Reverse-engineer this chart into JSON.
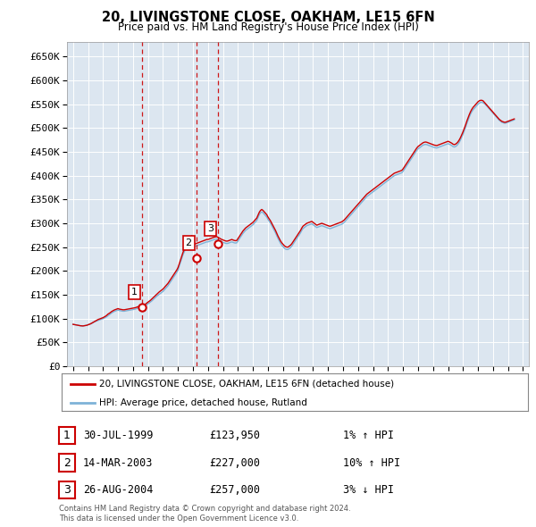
{
  "title": "20, LIVINGSTONE CLOSE, OAKHAM, LE15 6FN",
  "subtitle": "Price paid vs. HM Land Registry's House Price Index (HPI)",
  "ylabel_ticks": [
    "£0",
    "£50K",
    "£100K",
    "£150K",
    "£200K",
    "£250K",
    "£300K",
    "£350K",
    "£400K",
    "£450K",
    "£500K",
    "£550K",
    "£600K",
    "£650K"
  ],
  "ylim": [
    0,
    680000
  ],
  "xlim_start": 1994.6,
  "xlim_end": 2025.4,
  "background_color": "#ffffff",
  "plot_bg_color": "#dce6f0",
  "grid_color": "#ffffff",
  "transactions": [
    {
      "num": 1,
      "date": "30-JUL-1999",
      "price": 123950,
      "pct": "1%",
      "dir": "↑",
      "year": 1999.58
    },
    {
      "num": 2,
      "date": "14-MAR-2003",
      "price": 227000,
      "pct": "10%",
      "dir": "↑",
      "year": 2003.21
    },
    {
      "num": 3,
      "date": "26-AUG-2004",
      "price": 257000,
      "pct": "3%",
      "dir": "↓",
      "year": 2004.65
    }
  ],
  "red_line_color": "#cc0000",
  "blue_line_color": "#7eb3d8",
  "dashed_line_color": "#cc0000",
  "legend_label_red": "20, LIVINGSTONE CLOSE, OAKHAM, LE15 6FN (detached house)",
  "legend_label_blue": "HPI: Average price, detached house, Rutland",
  "footer1": "Contains HM Land Registry data © Crown copyright and database right 2024.",
  "footer2": "This data is licensed under the Open Government Licence v3.0.",
  "hpi_years": [
    1995.0,
    1995.083,
    1995.167,
    1995.25,
    1995.333,
    1995.417,
    1995.5,
    1995.583,
    1995.667,
    1995.75,
    1995.833,
    1995.917,
    1996.0,
    1996.083,
    1996.167,
    1996.25,
    1996.333,
    1996.417,
    1996.5,
    1996.583,
    1996.667,
    1996.75,
    1996.833,
    1996.917,
    1997.0,
    1997.083,
    1997.167,
    1997.25,
    1997.333,
    1997.417,
    1997.5,
    1997.583,
    1997.667,
    1997.75,
    1997.833,
    1997.917,
    1998.0,
    1998.083,
    1998.167,
    1998.25,
    1998.333,
    1998.417,
    1998.5,
    1998.583,
    1998.667,
    1998.75,
    1998.833,
    1998.917,
    1999.0,
    1999.083,
    1999.167,
    1999.25,
    1999.333,
    1999.417,
    1999.5,
    1999.583,
    1999.667,
    1999.75,
    1999.833,
    1999.917,
    2000.0,
    2000.083,
    2000.167,
    2000.25,
    2000.333,
    2000.417,
    2000.5,
    2000.583,
    2000.667,
    2000.75,
    2000.833,
    2000.917,
    2001.0,
    2001.083,
    2001.167,
    2001.25,
    2001.333,
    2001.417,
    2001.5,
    2001.583,
    2001.667,
    2001.75,
    2001.833,
    2001.917,
    2002.0,
    2002.083,
    2002.167,
    2002.25,
    2002.333,
    2002.417,
    2002.5,
    2002.583,
    2002.667,
    2002.75,
    2002.833,
    2002.917,
    2003.0,
    2003.083,
    2003.167,
    2003.25,
    2003.333,
    2003.417,
    2003.5,
    2003.583,
    2003.667,
    2003.75,
    2003.833,
    2003.917,
    2004.0,
    2004.083,
    2004.167,
    2004.25,
    2004.333,
    2004.417,
    2004.5,
    2004.583,
    2004.667,
    2004.75,
    2004.833,
    2004.917,
    2005.0,
    2005.083,
    2005.167,
    2005.25,
    2005.333,
    2005.417,
    2005.5,
    2005.583,
    2005.667,
    2005.75,
    2005.833,
    2005.917,
    2006.0,
    2006.083,
    2006.167,
    2006.25,
    2006.333,
    2006.417,
    2006.5,
    2006.583,
    2006.667,
    2006.75,
    2006.833,
    2006.917,
    2007.0,
    2007.083,
    2007.167,
    2007.25,
    2007.333,
    2007.417,
    2007.5,
    2007.583,
    2007.667,
    2007.75,
    2007.833,
    2007.917,
    2008.0,
    2008.083,
    2008.167,
    2008.25,
    2008.333,
    2008.417,
    2008.5,
    2008.583,
    2008.667,
    2008.75,
    2008.833,
    2008.917,
    2009.0,
    2009.083,
    2009.167,
    2009.25,
    2009.333,
    2009.417,
    2009.5,
    2009.583,
    2009.667,
    2009.75,
    2009.833,
    2009.917,
    2010.0,
    2010.083,
    2010.167,
    2010.25,
    2010.333,
    2010.417,
    2010.5,
    2010.583,
    2010.667,
    2010.75,
    2010.833,
    2010.917,
    2011.0,
    2011.083,
    2011.167,
    2011.25,
    2011.333,
    2011.417,
    2011.5,
    2011.583,
    2011.667,
    2011.75,
    2011.833,
    2011.917,
    2012.0,
    2012.083,
    2012.167,
    2012.25,
    2012.333,
    2012.417,
    2012.5,
    2012.583,
    2012.667,
    2012.75,
    2012.833,
    2012.917,
    2013.0,
    2013.083,
    2013.167,
    2013.25,
    2013.333,
    2013.417,
    2013.5,
    2013.583,
    2013.667,
    2013.75,
    2013.833,
    2013.917,
    2014.0,
    2014.083,
    2014.167,
    2014.25,
    2014.333,
    2014.417,
    2014.5,
    2014.583,
    2014.667,
    2014.75,
    2014.833,
    2014.917,
    2015.0,
    2015.083,
    2015.167,
    2015.25,
    2015.333,
    2015.417,
    2015.5,
    2015.583,
    2015.667,
    2015.75,
    2015.833,
    2015.917,
    2016.0,
    2016.083,
    2016.167,
    2016.25,
    2016.333,
    2016.417,
    2016.5,
    2016.583,
    2016.667,
    2016.75,
    2016.833,
    2016.917,
    2017.0,
    2017.083,
    2017.167,
    2017.25,
    2017.333,
    2017.417,
    2017.5,
    2017.583,
    2017.667,
    2017.75,
    2017.833,
    2017.917,
    2018.0,
    2018.083,
    2018.167,
    2018.25,
    2018.333,
    2018.417,
    2018.5,
    2018.583,
    2018.667,
    2018.75,
    2018.833,
    2018.917,
    2019.0,
    2019.083,
    2019.167,
    2019.25,
    2019.333,
    2019.417,
    2019.5,
    2019.583,
    2019.667,
    2019.75,
    2019.833,
    2019.917,
    2020.0,
    2020.083,
    2020.167,
    2020.25,
    2020.333,
    2020.417,
    2020.5,
    2020.583,
    2020.667,
    2020.75,
    2020.833,
    2020.917,
    2021.0,
    2021.083,
    2021.167,
    2021.25,
    2021.333,
    2021.417,
    2021.5,
    2021.583,
    2021.667,
    2021.75,
    2021.833,
    2021.917,
    2022.0,
    2022.083,
    2022.167,
    2022.25,
    2022.333,
    2022.417,
    2022.5,
    2022.583,
    2022.667,
    2022.75,
    2022.833,
    2022.917,
    2023.0,
    2023.083,
    2023.167,
    2023.25,
    2023.333,
    2023.417,
    2023.5,
    2023.583,
    2023.667,
    2023.75,
    2023.833,
    2023.917,
    2024.0,
    2024.083,
    2024.167,
    2024.25,
    2024.333,
    2024.417
  ],
  "hpi_values": [
    88000,
    87500,
    87000,
    86500,
    86000,
    85500,
    85000,
    84800,
    84600,
    85000,
    85500,
    86000,
    87000,
    88000,
    89000,
    90000,
    91500,
    93000,
    94000,
    95000,
    96000,
    97000,
    98000,
    99000,
    100000,
    101000,
    102500,
    104000,
    106000,
    108000,
    110000,
    112000,
    113500,
    115000,
    116000,
    117000,
    118000,
    117000,
    116500,
    116000,
    115500,
    115500,
    116000,
    116500,
    117000,
    117500,
    118000,
    118500,
    119000,
    119500,
    120000,
    121000,
    122000,
    122500,
    123000,
    123500,
    124500,
    126000,
    127500,
    129000,
    131000,
    133000,
    135000,
    137000,
    139500,
    142000,
    144500,
    147000,
    149000,
    151000,
    153000,
    155000,
    157000,
    160000,
    163000,
    166000,
    169000,
    173000,
    177000,
    181000,
    185000,
    189000,
    193000,
    197000,
    202000,
    210000,
    218000,
    226000,
    234000,
    240000,
    246000,
    252000,
    257000,
    261000,
    265000,
    269000,
    250000,
    251000,
    252000,
    253000,
    254000,
    255000,
    256000,
    257000,
    258000,
    259000,
    260000,
    261000,
    261000,
    262000,
    263000,
    264000,
    265000,
    266000,
    266500,
    267000,
    265500,
    264000,
    262500,
    261000,
    260000,
    259000,
    258000,
    257500,
    258000,
    259000,
    260000,
    261000,
    260000,
    259000,
    258500,
    259000,
    263000,
    267000,
    271000,
    275000,
    279000,
    282000,
    285000,
    287000,
    289000,
    291000,
    293000,
    295000,
    297000,
    300000,
    303000,
    306000,
    312000,
    318000,
    322000,
    324000,
    322000,
    319000,
    316000,
    313000,
    308000,
    304000,
    300000,
    295000,
    290000,
    285000,
    280000,
    274000,
    268000,
    263000,
    258000,
    254000,
    251000,
    248000,
    246000,
    245000,
    245000,
    247000,
    249000,
    252000,
    256000,
    260000,
    264000,
    268000,
    272000,
    276000,
    280000,
    285000,
    289000,
    291000,
    293000,
    295000,
    296000,
    297000,
    298000,
    299000,
    297000,
    295000,
    293000,
    291000,
    292000,
    293000,
    294000,
    295000,
    294000,
    293000,
    292000,
    291000,
    290000,
    289000,
    289000,
    290000,
    291000,
    292000,
    293000,
    294000,
    295000,
    296000,
    297000,
    298000,
    300000,
    302000,
    305000,
    308000,
    311000,
    314000,
    317000,
    320000,
    323000,
    326000,
    329000,
    332000,
    335000,
    338000,
    341000,
    344000,
    347000,
    350000,
    353000,
    356000,
    358000,
    360000,
    362000,
    364000,
    366000,
    368000,
    370000,
    372000,
    374000,
    376000,
    378000,
    380000,
    382000,
    384000,
    386000,
    388000,
    390000,
    392000,
    394000,
    396000,
    398000,
    400000,
    401000,
    402000,
    403000,
    404000,
    405000,
    406000,
    409000,
    413000,
    417000,
    421000,
    425000,
    429000,
    433000,
    437000,
    441000,
    445000,
    449000,
    453000,
    456000,
    458000,
    460000,
    462000,
    464000,
    465000,
    465500,
    465000,
    464000,
    463000,
    462000,
    461000,
    460000,
    459000,
    458500,
    458000,
    459000,
    460000,
    461000,
    462000,
    463000,
    464000,
    465000,
    466000,
    467000,
    466000,
    464500,
    463000,
    461000,
    460000,
    461000,
    463000,
    466000,
    470000,
    475000,
    481000,
    487000,
    494000,
    501000,
    509000,
    516000,
    523000,
    529000,
    534000,
    538000,
    541000,
    544000,
    547000,
    550000,
    552000,
    554000,
    554000,
    553000,
    551000,
    549000,
    546000,
    543000,
    540000,
    537000,
    534000,
    531000,
    528000,
    525000,
    522000,
    519000,
    516000,
    514000,
    512000,
    511000,
    510000,
    510000,
    511000,
    512000,
    513000,
    514000,
    515000,
    516000,
    517000
  ],
  "red_values": [
    88000,
    87500,
    87000,
    86500,
    86000,
    85500,
    85000,
    84800,
    84600,
    85000,
    85500,
    86000,
    87000,
    88000,
    89000,
    90500,
    92000,
    93500,
    95000,
    96500,
    98000,
    99000,
    100000,
    101000,
    102000,
    103500,
    105000,
    107000,
    109500,
    111000,
    113000,
    115000,
    116500,
    118000,
    119000,
    120000,
    121000,
    120000,
    119500,
    119000,
    118500,
    118500,
    119000,
    119500,
    120000,
    120500,
    121000,
    121500,
    122000,
    122500,
    123000,
    124000,
    125000,
    125500,
    126000,
    126500,
    127500,
    129000,
    130500,
    132500,
    134500,
    136500,
    138500,
    141000,
    143500,
    146000,
    148500,
    151000,
    153500,
    156000,
    158000,
    160000,
    162000,
    165000,
    168000,
    171000,
    174000,
    178000,
    182000,
    186000,
    190000,
    194000,
    198000,
    202000,
    207000,
    215000,
    223000,
    231000,
    239000,
    245000,
    251000,
    257000,
    262000,
    266000,
    270000,
    274000,
    255000,
    256000,
    257000,
    258000,
    259000,
    260000,
    261000,
    262000,
    263000,
    264000,
    265000,
    266000,
    266000,
    267000,
    268000,
    269000,
    270000,
    271000,
    271500,
    272000,
    270500,
    269000,
    267500,
    266000,
    265000,
    264000,
    263000,
    262500,
    263000,
    264000,
    265000,
    266000,
    265000,
    264000,
    263500,
    264000,
    268000,
    272000,
    276000,
    280000,
    284000,
    287000,
    290000,
    292000,
    294000,
    296000,
    298000,
    300000,
    302000,
    305000,
    308000,
    311000,
    317000,
    323000,
    327000,
    329000,
    327000,
    324000,
    321000,
    318000,
    313000,
    309000,
    305000,
    300000,
    295000,
    290000,
    285000,
    279000,
    273000,
    268000,
    263000,
    259000,
    256000,
    253000,
    251000,
    250000,
    250000,
    252000,
    254000,
    257000,
    261000,
    265000,
    269000,
    273000,
    277000,
    281000,
    285000,
    290000,
    294000,
    296000,
    298000,
    300000,
    301000,
    302000,
    303000,
    304000,
    302000,
    300000,
    298000,
    296000,
    297000,
    298000,
    299000,
    300000,
    299000,
    298000,
    297000,
    296000,
    295000,
    294000,
    294000,
    295000,
    296000,
    297000,
    298000,
    299000,
    300000,
    301000,
    302000,
    303000,
    305000,
    307000,
    310000,
    313000,
    316000,
    319000,
    322000,
    325000,
    328000,
    331000,
    334000,
    337000,
    340000,
    343000,
    346000,
    349000,
    352000,
    355000,
    358000,
    361000,
    363000,
    365000,
    367000,
    369000,
    371000,
    373000,
    375000,
    377000,
    379000,
    381000,
    383000,
    385000,
    387000,
    389000,
    391000,
    393000,
    395000,
    397000,
    399000,
    401000,
    403000,
    405000,
    406000,
    407000,
    408000,
    409000,
    410000,
    411000,
    414000,
    418000,
    422000,
    426000,
    430000,
    434000,
    438000,
    442000,
    446000,
    450000,
    454000,
    458000,
    461000,
    463000,
    465000,
    467000,
    469000,
    470000,
    470500,
    470000,
    469000,
    468000,
    467000,
    466000,
    465000,
    464000,
    463500,
    463000,
    464000,
    465000,
    466000,
    467000,
    468000,
    469000,
    470000,
    471000,
    472000,
    471000,
    469500,
    468000,
    466000,
    465000,
    466000,
    468000,
    471000,
    475000,
    480000,
    486000,
    492000,
    499000,
    506000,
    514000,
    521000,
    528000,
    534000,
    539000,
    543000,
    546000,
    549000,
    552000,
    555000,
    557000,
    558000,
    558000,
    557000,
    554000,
    551000,
    548000,
    545000,
    542000,
    539000,
    536000,
    533000,
    530000,
    527000,
    524000,
    521000,
    518000,
    516000,
    514000,
    513000,
    512000,
    512000,
    513000,
    514000,
    515000,
    516000,
    517000,
    518000,
    519000
  ]
}
